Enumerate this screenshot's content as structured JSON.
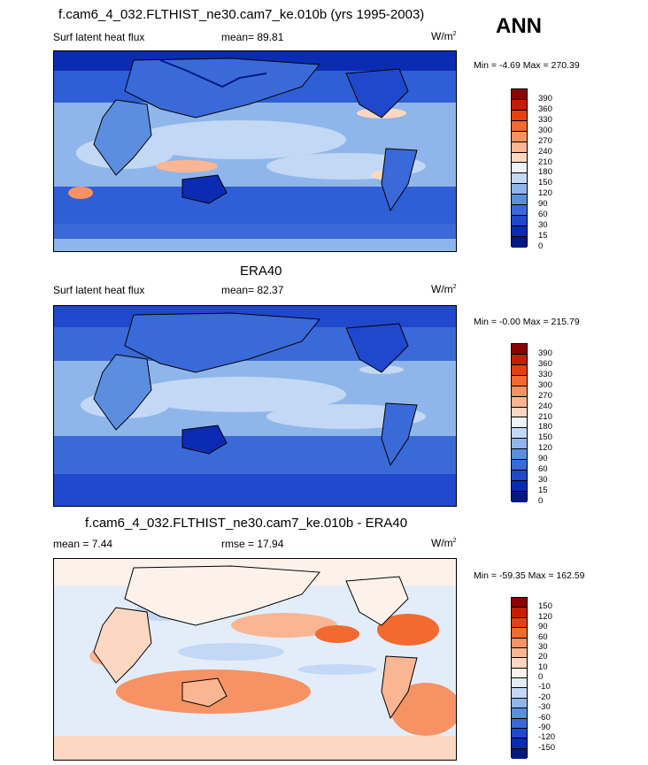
{
  "season": "ANN",
  "units_base": "W/m",
  "units_exp": "2",
  "panels": [
    {
      "title": "f.cam6_4_032.FLTHIST_ne30.cam7_ke.010b (yrs 1995-2003)",
      "variable": "Surf latent heat flux",
      "stat_text": "mean=  89.81",
      "minmax": "Min =  -4.69 Max = 270.39",
      "colorbar": {
        "labels": [
          "390",
          "360",
          "330",
          "300",
          "270",
          "240",
          "210",
          "180",
          "150",
          "120",
          "90",
          "60",
          "30",
          "15",
          "0"
        ],
        "colors": [
          "#8b0000",
          "#c41e00",
          "#e6400f",
          "#f26a30",
          "#f79264",
          "#fab592",
          "#fcd8c2",
          "#eef2fb",
          "#c2d8f4",
          "#8fb6ea",
          "#5c8ee0",
          "#3a6ad8",
          "#2048cc",
          "#0c2bb3",
          "#001a80"
        ]
      }
    },
    {
      "title": "ERA40",
      "variable": "Surf latent heat flux",
      "stat_text": "mean=  82.37",
      "minmax": "Min =  -0.00 Max = 215.79",
      "colorbar": {
        "labels": [
          "390",
          "360",
          "330",
          "300",
          "270",
          "240",
          "210",
          "180",
          "150",
          "120",
          "90",
          "60",
          "30",
          "15",
          "0"
        ],
        "colors": [
          "#8b0000",
          "#c41e00",
          "#e6400f",
          "#f26a30",
          "#f79264",
          "#fab592",
          "#fcd8c2",
          "#eef2fb",
          "#c2d8f4",
          "#8fb6ea",
          "#5c8ee0",
          "#3a6ad8",
          "#2048cc",
          "#0c2bb3",
          "#001a80"
        ]
      }
    },
    {
      "title": "f.cam6_4_032.FLTHIST_ne30.cam7_ke.010b - ERA40",
      "variable": "mean =   7.44",
      "stat_text": "rmse =  17.94",
      "minmax": "Min = -59.35 Max = 162.59",
      "colorbar": {
        "labels": [
          "150",
          "120",
          "90",
          "60",
          "30",
          "20",
          "10",
          "0",
          "-10",
          "-20",
          "-30",
          "-60",
          "-90",
          "-120",
          "-150"
        ],
        "colors": [
          "#8b0000",
          "#c41e00",
          "#e6400f",
          "#f26a30",
          "#f79264",
          "#fab592",
          "#fcd8c2",
          "#fdf2ea",
          "#e3edfa",
          "#c2d8f4",
          "#8fb6ea",
          "#5c8ee0",
          "#3a6ad8",
          "#2048cc",
          "#0c2bb3",
          "#001a80"
        ]
      }
    }
  ]
}
